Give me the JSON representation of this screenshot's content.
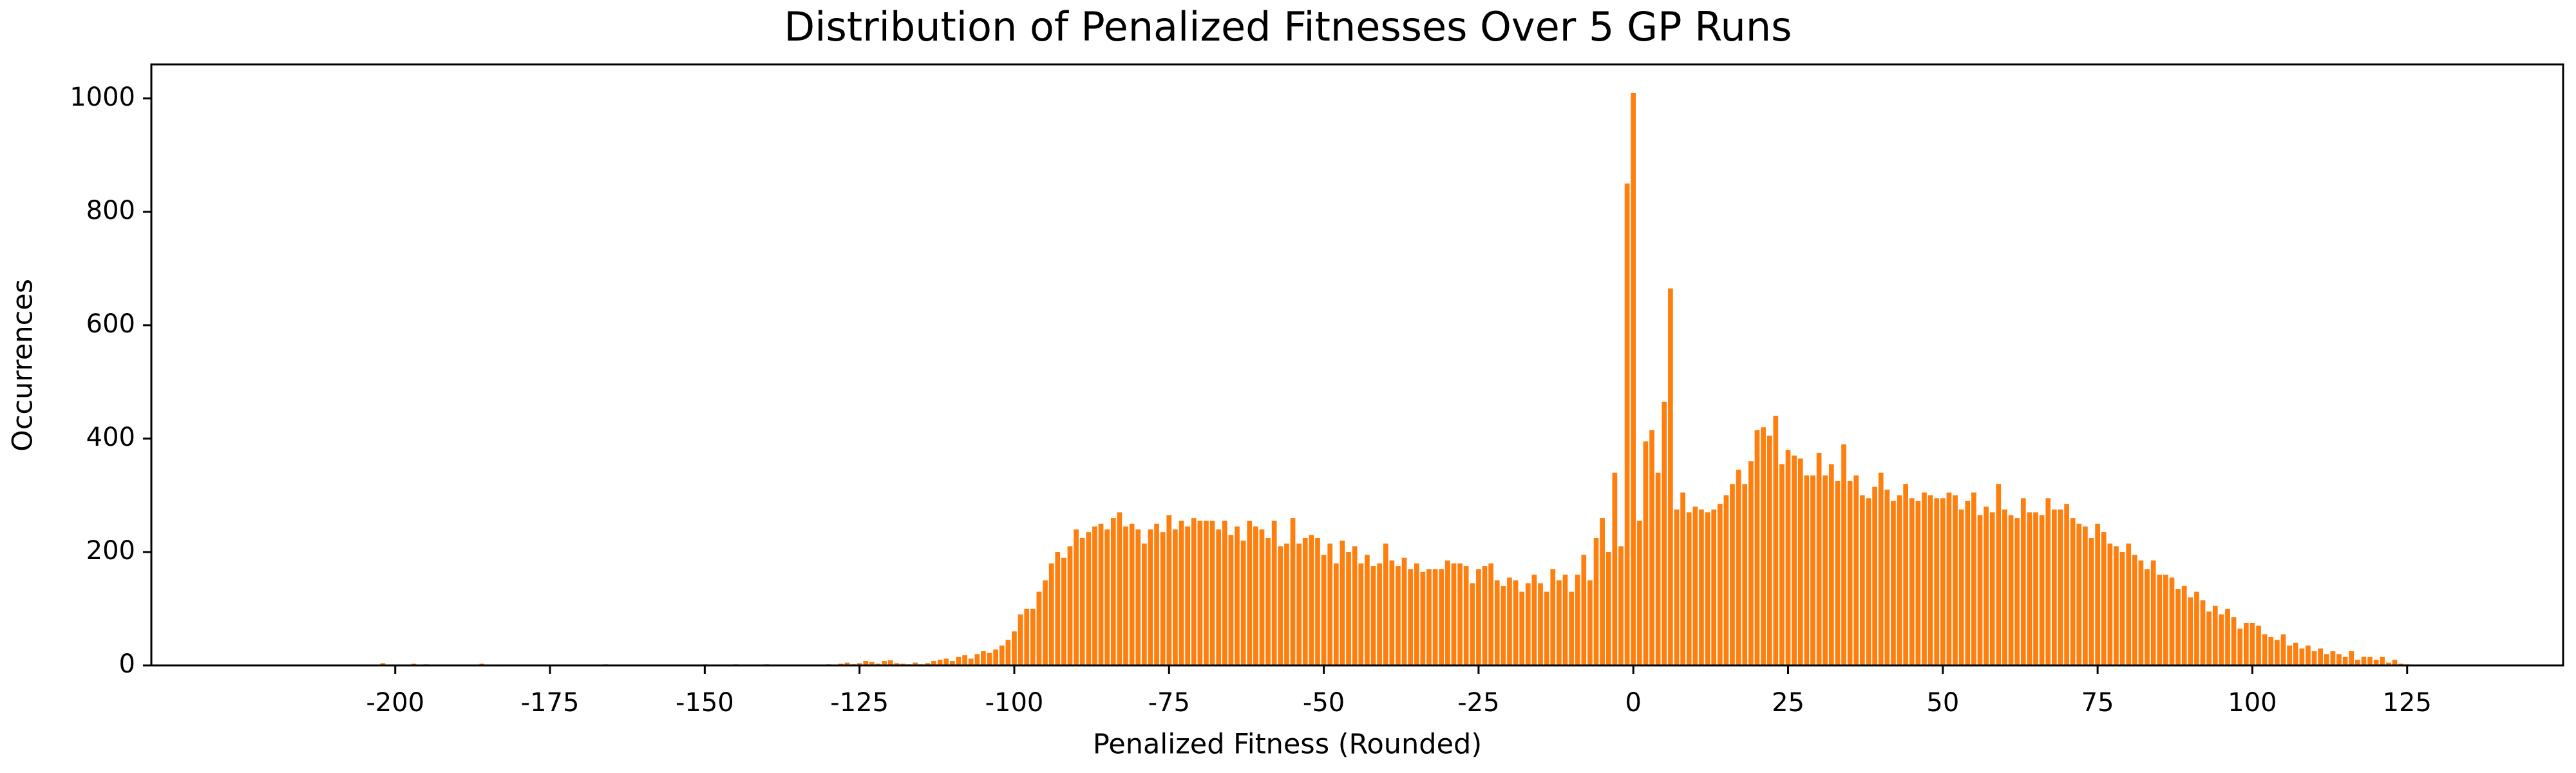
{
  "chart_data": {
    "type": "bar",
    "title": "Distribution of Penalized Fitnesses Over 5 GP Runs",
    "x_label": "Penalized Fitness (Rounded)",
    "y_label": "Occurrences",
    "color": "#ff7f0e",
    "x": [
      -202,
      -197,
      -195,
      -186,
      -166,
      -150,
      -145,
      -140,
      -130,
      -129,
      -128,
      -127,
      -126,
      -125,
      -124,
      -123,
      -122,
      -121,
      -120,
      -119,
      -118,
      -117,
      -116,
      -115,
      -114,
      -113,
      -112,
      -111,
      -110,
      -109,
      -108,
      -107,
      -106,
      -105,
      -104,
      -103,
      -102,
      -101,
      -100,
      -99,
      -98,
      -97,
      -96,
      -95,
      -94,
      -93,
      -92,
      -91,
      -90,
      -89,
      -88,
      -87,
      -86,
      -85,
      -84,
      -83,
      -82,
      -81,
      -80,
      -79,
      -78,
      -77,
      -76,
      -75,
      -74,
      -73,
      -72,
      -71,
      -70,
      -69,
      -68,
      -67,
      -66,
      -65,
      -64,
      -63,
      -62,
      -61,
      -60,
      -59,
      -58,
      -57,
      -56,
      -55,
      -54,
      -53,
      -52,
      -51,
      -50,
      -49,
      -48,
      -47,
      -46,
      -45,
      -44,
      -43,
      -42,
      -41,
      -40,
      -39,
      -38,
      -37,
      -36,
      -35,
      -34,
      -33,
      -32,
      -31,
      -30,
      -29,
      -28,
      -27,
      -26,
      -25,
      -24,
      -23,
      -22,
      -21,
      -20,
      -19,
      -18,
      -17,
      -16,
      -15,
      -14,
      -13,
      -12,
      -11,
      -10,
      -9,
      -8,
      -7,
      -6,
      -5,
      -4,
      -3,
      -2,
      -1,
      0,
      1,
      2,
      3,
      4,
      5,
      6,
      7,
      8,
      9,
      10,
      11,
      12,
      13,
      14,
      15,
      16,
      17,
      18,
      19,
      20,
      21,
      22,
      23,
      24,
      25,
      26,
      27,
      28,
      29,
      30,
      31,
      32,
      33,
      34,
      35,
      36,
      37,
      38,
      39,
      40,
      41,
      42,
      43,
      44,
      45,
      46,
      47,
      48,
      49,
      50,
      51,
      52,
      53,
      54,
      55,
      56,
      57,
      58,
      59,
      60,
      61,
      62,
      63,
      64,
      65,
      66,
      67,
      68,
      69,
      70,
      71,
      72,
      73,
      74,
      75,
      76,
      77,
      78,
      79,
      80,
      81,
      82,
      83,
      84,
      85,
      86,
      87,
      88,
      89,
      90,
      91,
      92,
      93,
      94,
      95,
      96,
      97,
      98,
      99,
      100,
      101,
      102,
      103,
      104,
      105,
      106,
      107,
      108,
      109,
      110,
      111,
      112,
      113,
      114,
      115,
      116,
      117,
      118,
      119,
      120,
      121,
      122,
      123,
      124,
      125,
      126,
      127,
      128,
      129,
      130
    ],
    "values": [
      4,
      3,
      2,
      3,
      2,
      2,
      2,
      2,
      2,
      0,
      3,
      5,
      2,
      4,
      8,
      6,
      3,
      8,
      9,
      4,
      3,
      2,
      5,
      2,
      4,
      8,
      10,
      12,
      8,
      15,
      18,
      12,
      20,
      25,
      22,
      28,
      35,
      45,
      60,
      90,
      100,
      100,
      130,
      150,
      180,
      200,
      190,
      210,
      240,
      225,
      235,
      245,
      250,
      240,
      260,
      270,
      245,
      250,
      240,
      215,
      240,
      250,
      235,
      265,
      240,
      255,
      245,
      260,
      255,
      255,
      255,
      240,
      255,
      230,
      245,
      220,
      255,
      245,
      240,
      225,
      255,
      210,
      215,
      260,
      215,
      225,
      230,
      225,
      195,
      215,
      180,
      220,
      200,
      210,
      180,
      195,
      175,
      180,
      215,
      185,
      175,
      190,
      170,
      180,
      165,
      170,
      170,
      170,
      185,
      180,
      180,
      175,
      145,
      170,
      175,
      180,
      150,
      140,
      155,
      150,
      130,
      145,
      160,
      145,
      130,
      170,
      150,
      160,
      130,
      160,
      195,
      150,
      225,
      260,
      200,
      340,
      210,
      850,
      1010,
      255,
      395,
      415,
      340,
      465,
      665,
      275,
      305,
      270,
      280,
      275,
      270,
      275,
      285,
      300,
      320,
      345,
      320,
      360,
      415,
      420,
      405,
      440,
      355,
      380,
      370,
      365,
      335,
      335,
      375,
      335,
      355,
      325,
      390,
      325,
      335,
      300,
      295,
      315,
      340,
      310,
      290,
      300,
      320,
      295,
      290,
      305,
      300,
      295,
      295,
      305,
      300,
      275,
      290,
      305,
      265,
      280,
      270,
      320,
      275,
      265,
      260,
      295,
      270,
      270,
      265,
      295,
      275,
      275,
      285,
      260,
      250,
      245,
      225,
      250,
      235,
      215,
      210,
      200,
      215,
      195,
      185,
      170,
      185,
      160,
      160,
      155,
      135,
      140,
      120,
      130,
      115,
      95,
      105,
      90,
      100,
      85,
      65,
      75,
      75,
      70,
      55,
      50,
      45,
      55,
      35,
      40,
      30,
      35,
      25,
      30,
      20,
      25,
      20,
      15,
      25,
      10,
      15,
      15,
      10,
      15,
      5,
      10,
      3,
      2,
      1,
      0,
      1,
      0,
      1
    ],
    "xlim": [
      -239.4,
      150.2
    ],
    "ylim": [
      0,
      1060
    ],
    "xticks": [
      -200,
      -175,
      -150,
      -125,
      -100,
      -75,
      -50,
      -25,
      0,
      25,
      50,
      75,
      100,
      125
    ],
    "yticks": [
      0,
      200,
      400,
      600,
      800,
      1000
    ]
  }
}
